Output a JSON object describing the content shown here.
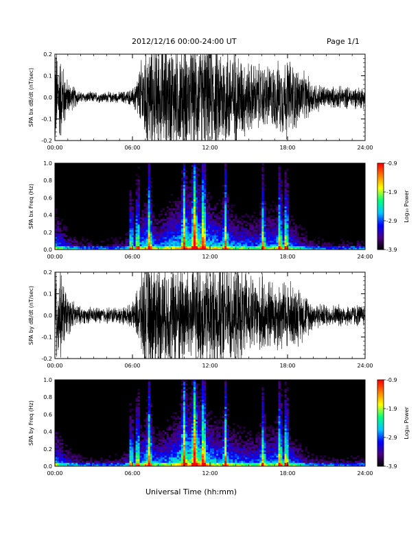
{
  "header": {
    "title": "2012/12/16  00:00-24:00 UT",
    "page": "Page 1/1"
  },
  "footer": {
    "x_axis_label": "Universal Time (hh:mm)"
  },
  "colorbar": {
    "label": "Log₁₀ Power",
    "ticks": [
      "-0.9",
      "-1.9",
      "-2.9",
      "-3.9"
    ],
    "range": [
      -3.9,
      -0.9
    ],
    "colors": [
      "#000000",
      "#4b0082",
      "#0000ff",
      "#00c8ff",
      "#00ff80",
      "#ffff00",
      "#ff8000",
      "#ff0000"
    ]
  },
  "chart_data": [
    {
      "type": "line",
      "ylabel": "SPA bx dB/dt (nT/sec)",
      "xlim": [
        0,
        24
      ],
      "ylim": [
        -0.2,
        0.2
      ],
      "xticks": [
        "00:00",
        "06:00",
        "12:00",
        "18:00",
        "24:00"
      ],
      "yticks": [
        "0.2",
        "0.1",
        "0.0",
        "-0.1",
        "-0.2"
      ],
      "color": "#000000",
      "x": [
        0,
        0.5,
        1,
        2,
        3,
        4,
        5,
        6,
        6.5,
        7,
        8,
        9,
        10,
        11,
        12,
        13,
        14,
        15,
        16,
        17,
        18,
        19,
        20,
        21,
        22,
        23,
        24
      ],
      "amplitude": [
        0.2,
        0.15,
        0.06,
        0.02,
        0.02,
        0.02,
        0.02,
        0.03,
        0.1,
        0.2,
        0.2,
        0.2,
        0.2,
        0.2,
        0.2,
        0.2,
        0.18,
        0.13,
        0.12,
        0.12,
        0.15,
        0.1,
        0.06,
        0.04,
        0.04,
        0.04,
        0.04
      ]
    },
    {
      "type": "heatmap",
      "ylabel": "SPA bx Freq (Hz)",
      "xlim": [
        0,
        24
      ],
      "ylim": [
        0,
        1.0
      ],
      "xticks": [
        "00:00",
        "06:00",
        "12:00",
        "18:00",
        "24:00"
      ],
      "yticks": [
        "1.0",
        "0.8",
        "0.6",
        "0.4",
        "0.2",
        "0.0"
      ],
      "x": [
        0,
        1,
        2,
        3,
        4,
        5,
        6,
        7,
        8,
        9,
        10,
        11,
        12,
        13,
        14,
        15,
        16,
        17,
        18,
        19,
        20,
        21,
        22,
        23,
        24
      ],
      "low_freq_log_power": [
        -2.0,
        -2.6,
        -2.9,
        -3.0,
        -3.0,
        -2.9,
        -2.5,
        -1.8,
        -2.2,
        -1.9,
        -1.7,
        -1.3,
        -1.8,
        -2.0,
        -2.1,
        -2.2,
        -2.2,
        -2.0,
        -2.1,
        -2.5,
        -2.9,
        -3.0,
        -3.0,
        -3.0,
        -3.0
      ],
      "bursts": [
        5.9,
        6.4,
        7.3,
        10.0,
        10.8,
        11.5,
        13.2,
        16.1,
        17.4,
        17.9
      ]
    },
    {
      "type": "line",
      "ylabel": "SPA by dB/dt (nT/sec)",
      "xlim": [
        0,
        24
      ],
      "ylim": [
        -0.2,
        0.2
      ],
      "xticks": [
        "00:00",
        "06:00",
        "12:00",
        "18:00",
        "24:00"
      ],
      "yticks": [
        "0.2",
        "0.1",
        "0.0",
        "-0.1",
        "-0.2"
      ],
      "color": "#000000",
      "x": [
        0,
        0.5,
        1,
        2,
        3,
        4,
        5,
        6,
        6.5,
        7,
        8,
        9,
        10,
        11,
        12,
        13,
        14,
        15,
        16,
        17,
        18,
        19,
        20,
        21,
        22,
        23,
        24
      ],
      "amplitude": [
        0.2,
        0.15,
        0.07,
        0.03,
        0.03,
        0.03,
        0.03,
        0.04,
        0.12,
        0.2,
        0.2,
        0.2,
        0.2,
        0.2,
        0.2,
        0.2,
        0.18,
        0.15,
        0.14,
        0.13,
        0.13,
        0.1,
        0.05,
        0.04,
        0.04,
        0.04,
        0.04
      ]
    },
    {
      "type": "heatmap",
      "ylabel": "SPA by Freq (Hz)",
      "xlim": [
        0,
        24
      ],
      "ylim": [
        0,
        1.0
      ],
      "xticks": [
        "00:00",
        "06:00",
        "12:00",
        "18:00",
        "24:00"
      ],
      "yticks": [
        "1.0",
        "0.8",
        "0.6",
        "0.4",
        "0.2",
        "0.0"
      ],
      "x": [
        0,
        1,
        2,
        3,
        4,
        5,
        6,
        7,
        8,
        9,
        10,
        11,
        12,
        13,
        14,
        15,
        16,
        17,
        18,
        19,
        20,
        21,
        22,
        23,
        24
      ],
      "low_freq_log_power": [
        -2.0,
        -2.6,
        -2.9,
        -3.0,
        -3.0,
        -2.9,
        -2.5,
        -1.8,
        -2.2,
        -1.9,
        -1.6,
        -1.3,
        -1.8,
        -2.0,
        -2.1,
        -2.2,
        -2.2,
        -2.0,
        -2.1,
        -2.5,
        -2.9,
        -3.0,
        -3.0,
        -3.0,
        -3.0
      ],
      "bursts": [
        5.9,
        6.4,
        7.3,
        10.0,
        10.8,
        11.5,
        13.2,
        16.1,
        17.4,
        17.9
      ]
    }
  ]
}
